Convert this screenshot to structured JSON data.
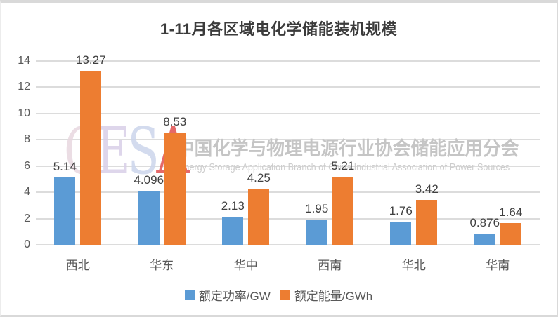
{
  "title": "1-11月各区域电化学储能装机规模",
  "watermark": {
    "logo_letters": [
      {
        "char": "C",
        "color": "#e8d8e0"
      },
      {
        "char": "E",
        "color": "#d9d0e8"
      },
      {
        "char": "S",
        "color": "#ccd5ec"
      },
      {
        "char": "A",
        "color": "#e14f4f"
      }
    ],
    "cn_line": "中国化学与物理电源行业协会储能应用分会",
    "en_line": "Energy Storage Application Branch of China Industrial Association of Power Sources"
  },
  "chart_data": {
    "type": "bar",
    "categories": [
      "西北",
      "华东",
      "华中",
      "西南",
      "华北",
      "华南"
    ],
    "series": [
      {
        "name": "额定功率/GW",
        "color": "#5B9BD5",
        "values": [
          5.14,
          4.096,
          2.13,
          1.95,
          1.76,
          0.876
        ],
        "labels": [
          "5.14",
          "4.096",
          "2.13",
          "1.95",
          "1.76",
          "0.876"
        ]
      },
      {
        "name": "额定能量/GWh",
        "color": "#ED7D31",
        "values": [
          13.27,
          8.53,
          4.25,
          5.21,
          3.42,
          1.64
        ],
        "labels": [
          "13.27",
          "8.53",
          "4.25",
          "5.21",
          "3.42",
          "1.64"
        ]
      }
    ],
    "title": "1-11月各区域电化学储能装机规模",
    "xlabel": "",
    "ylabel": "",
    "ylim": [
      0,
      14
    ],
    "yticks": [
      0,
      2,
      4,
      6,
      8,
      10,
      12,
      14
    ],
    "grid": true,
    "legend_position": "bottom",
    "grid_color": "#dcdcdc"
  }
}
